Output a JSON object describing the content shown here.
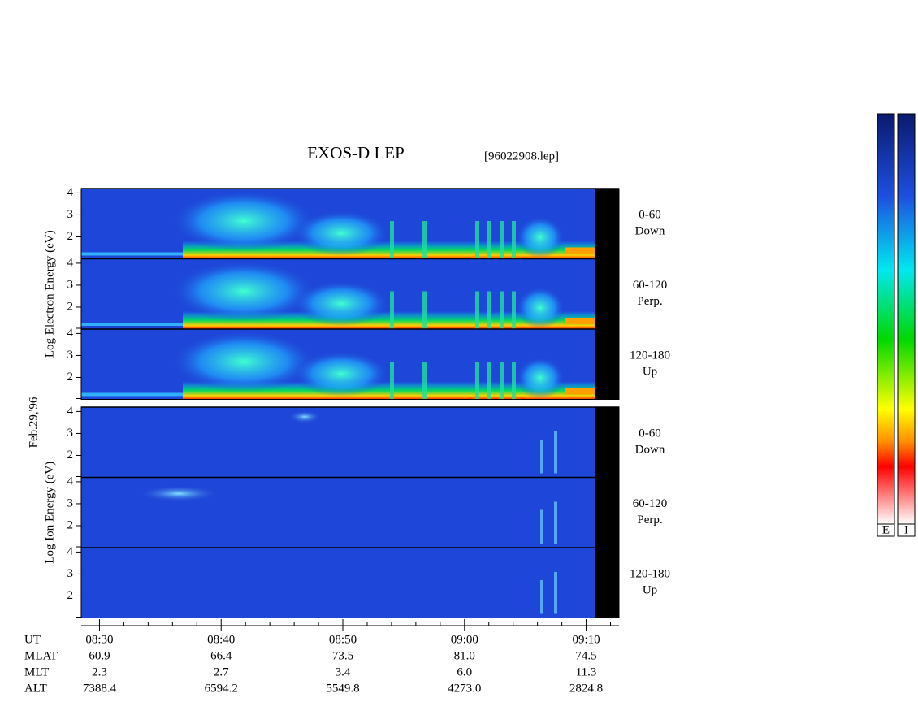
{
  "chart_data": {
    "type": "spectrogram",
    "title": "EXOS-D LEP",
    "file_label": "[96022908.lep]",
    "date_label": "Feb.29,'96",
    "panels": [
      {
        "ylabel": "Log Electron Energy (eV)",
        "species": "electron",
        "channels": [
          {
            "angle": "0-60",
            "direction": "Down"
          },
          {
            "angle": "60-120",
            "direction": "Perp."
          },
          {
            "angle": "120-180",
            "direction": "Up"
          }
        ]
      },
      {
        "ylabel": "Log Ion Energy (eV)",
        "species": "ion",
        "channels": [
          {
            "angle": "0-60",
            "direction": "Down"
          },
          {
            "angle": "60-120",
            "direction": "Perp."
          },
          {
            "angle": "120-180",
            "direction": "Up"
          }
        ]
      }
    ],
    "ylim": [
      1,
      4.2
    ],
    "yticks": [
      2,
      3,
      4
    ],
    "xlabel": "UT",
    "xlim": [
      508.5,
      552.7
    ],
    "xticks": [
      {
        "value": 510,
        "label": "08:30"
      },
      {
        "value": 520,
        "label": "08:40"
      },
      {
        "value": 530,
        "label": "08:50"
      },
      {
        "value": 540,
        "label": "09:00"
      },
      {
        "value": 550,
        "label": "09:10"
      }
    ],
    "minor_xticks": [
      512,
      514,
      516,
      518,
      522,
      524,
      526,
      528,
      532,
      534,
      536,
      538,
      542,
      544,
      546,
      548,
      552
    ],
    "orbit": [
      {
        "name": "MLAT",
        "values": [
          "60.9",
          "66.4",
          "73.5",
          "81.0",
          "74.5"
        ]
      },
      {
        "name": "MLT",
        "values": [
          "2.3",
          "2.7",
          "3.4",
          "6.0",
          "11.3"
        ]
      },
      {
        "name": "ALT",
        "values": [
          "7388.4",
          "6594.2",
          "5549.8",
          "4273.0",
          "2824.8"
        ]
      }
    ],
    "colorbar_labels": [
      "E",
      "I"
    ]
  }
}
